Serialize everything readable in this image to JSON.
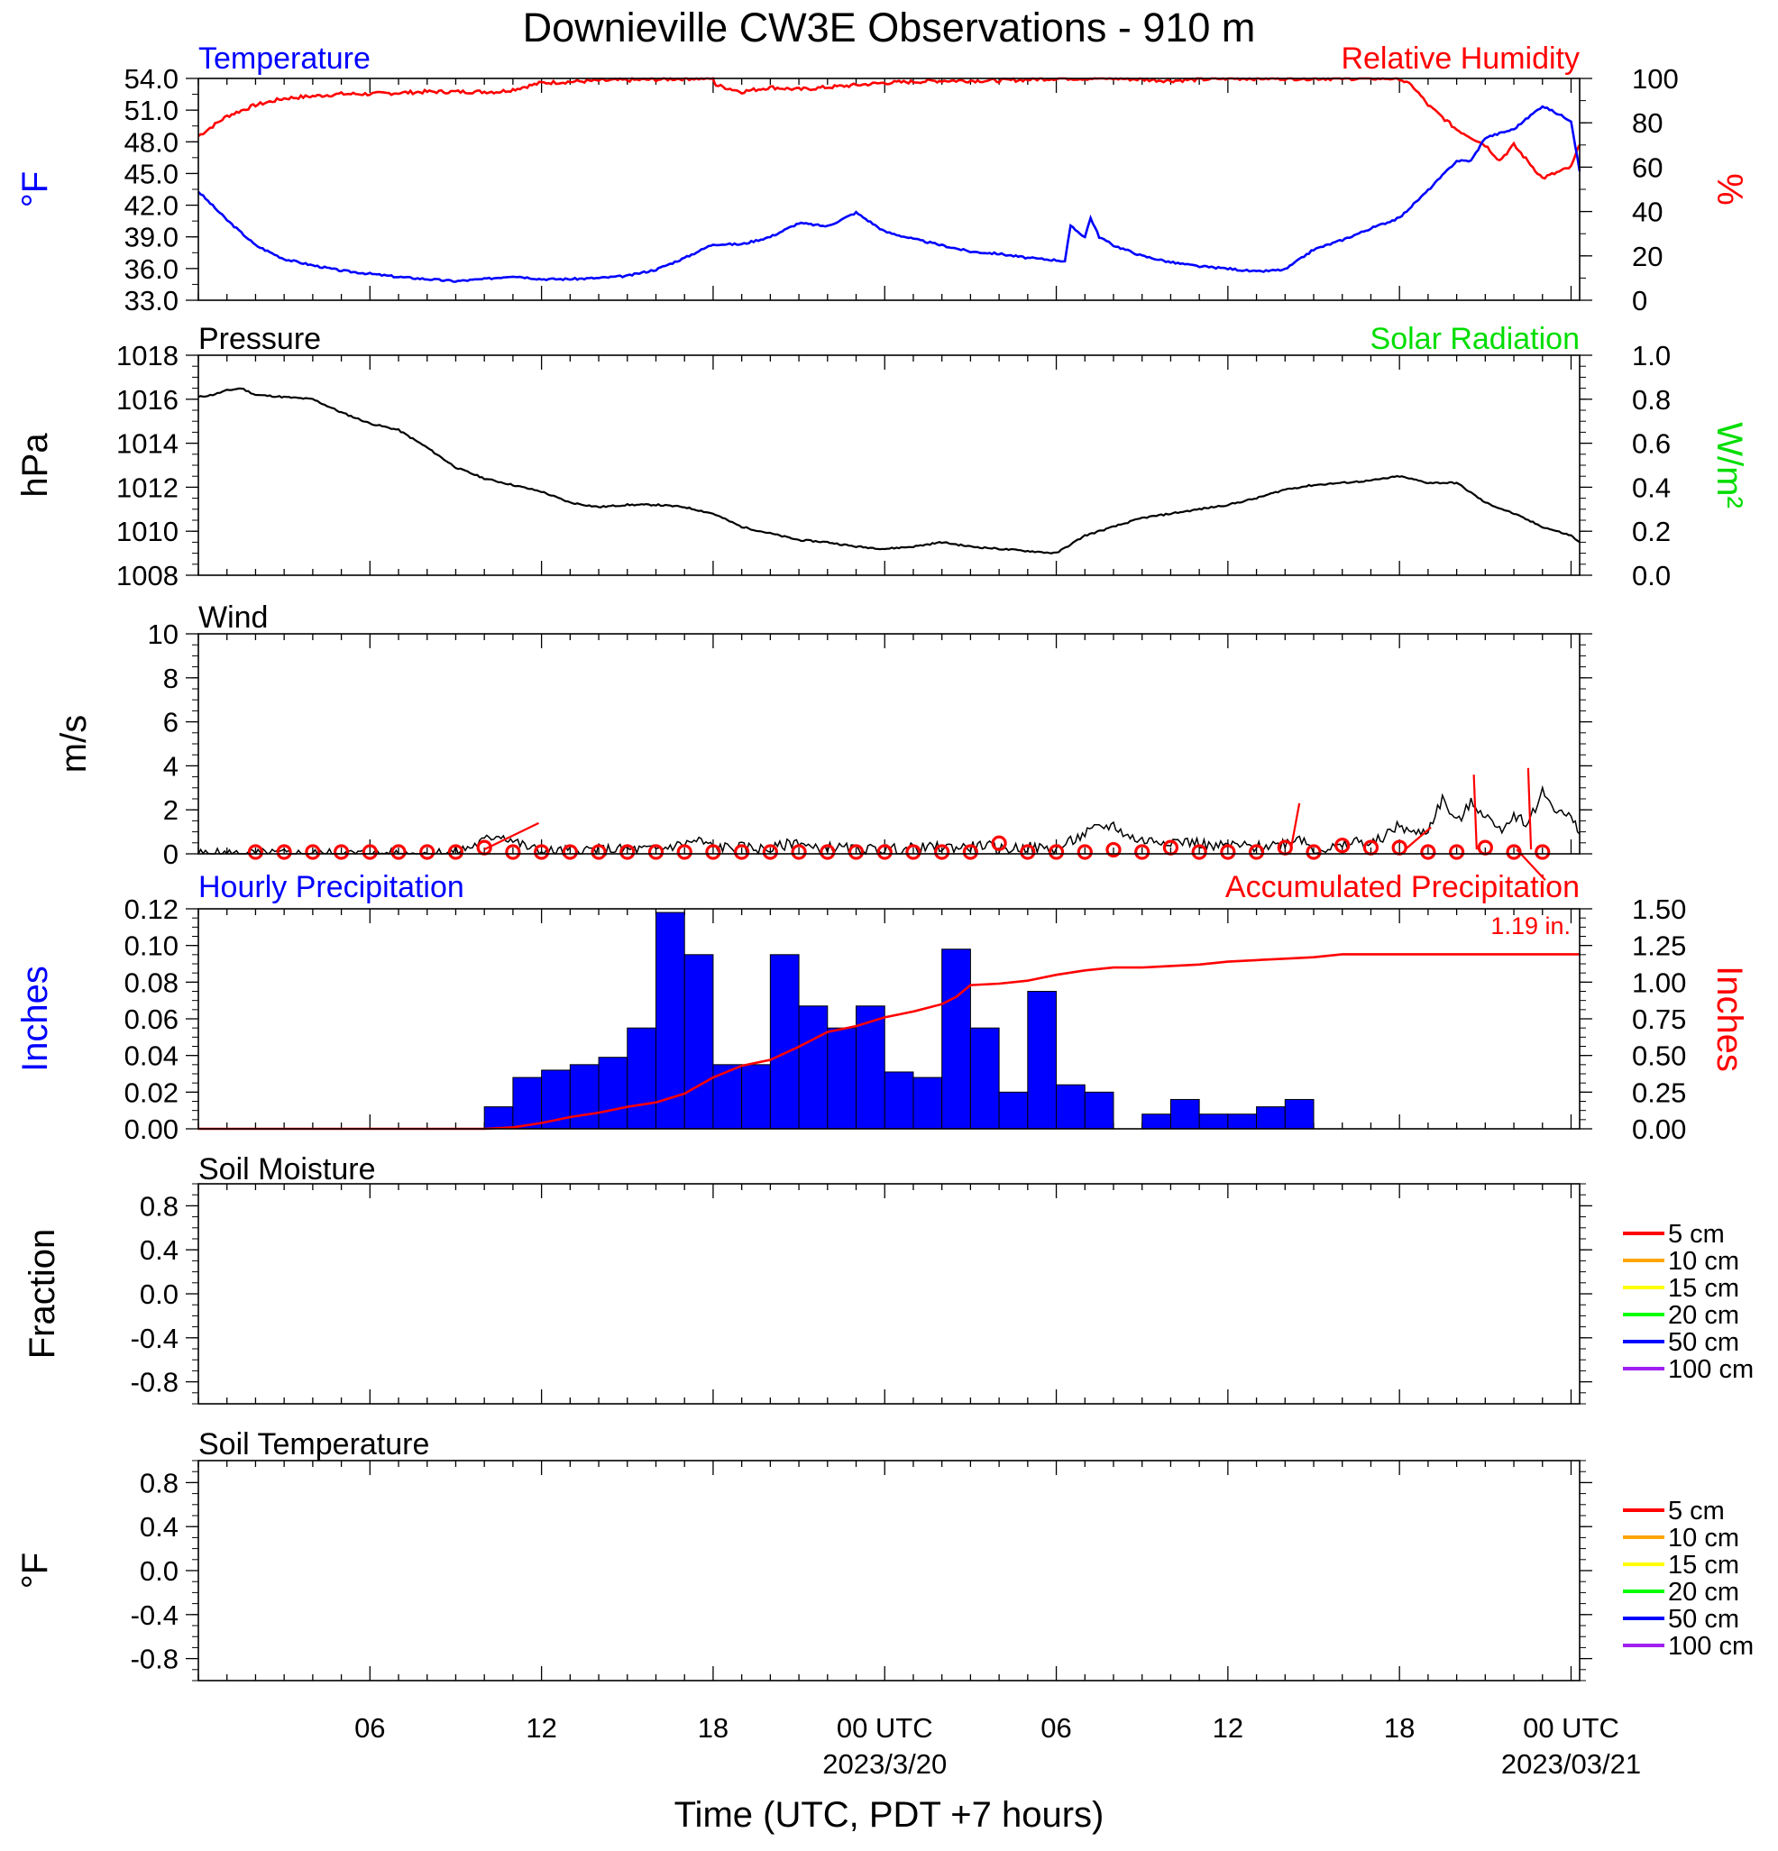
{
  "title": "Downieville CW3E Observations - 910 m",
  "x_axis": {
    "label": "Time (UTC, PDT +7 hours)",
    "ticks": [
      {
        "hour": 6,
        "label": "06"
      },
      {
        "hour": 12,
        "label": "12"
      },
      {
        "hour": 18,
        "label": "18"
      },
      {
        "hour": 24,
        "label": "00 UTC",
        "sub": "2023/3/20"
      },
      {
        "hour": 30,
        "label": "06"
      },
      {
        "hour": 36,
        "label": "12"
      },
      {
        "hour": 42,
        "label": "18"
      },
      {
        "hour": 48,
        "label": "00 UTC",
        "sub": "2023/03/21"
      }
    ]
  },
  "colors": {
    "temperature": "#0000ff",
    "humidity": "#ff0000",
    "pressure": "#000000",
    "solar": "#00dd00",
    "wind": "#000000",
    "wind_marker": "#ff0000",
    "precip_bar": "#0000ff",
    "accum": "#ff0000"
  },
  "panels": {
    "temp_rh": {
      "left_title": "Temperature",
      "right_title": "Relative Humidity",
      "left_unit": "°F",
      "right_unit": "%",
      "left_ticks": [
        "54.0",
        "51.0",
        "48.0",
        "45.0",
        "42.0",
        "39.0",
        "36.0",
        "33.0"
      ],
      "right_ticks": [
        "100",
        "80",
        "60",
        "40",
        "20",
        "0"
      ]
    },
    "pressure": {
      "left_title": "Pressure",
      "right_title": "Solar Radiation",
      "left_unit": "hPa",
      "right_unit": "W/m²",
      "left_ticks": [
        "1018",
        "1016",
        "1014",
        "1012",
        "1010",
        "1008"
      ],
      "right_ticks": [
        "1.0",
        "0.8",
        "0.6",
        "0.4",
        "0.2",
        "0.0"
      ]
    },
    "wind": {
      "left_title": "Wind",
      "left_unit": "m/s",
      "left_ticks": [
        "10",
        "8",
        "6",
        "4",
        "2",
        "0"
      ]
    },
    "precip": {
      "left_title": "Hourly Precipitation",
      "right_title": "Accumulated Precipitation",
      "left_unit": "Inches",
      "right_unit": "Inches",
      "total_label": "1.19 in.",
      "left_ticks": [
        "0.12",
        "0.10",
        "0.08",
        "0.06",
        "0.04",
        "0.02",
        "0.00"
      ],
      "right_ticks": [
        "1.50",
        "1.25",
        "1.00",
        "0.75",
        "0.50",
        "0.25",
        "0.00"
      ]
    },
    "soil_moisture": {
      "left_title": "Soil Moisture",
      "left_unit": "Fraction",
      "left_ticks": [
        "0.8",
        "0.4",
        "0.0",
        "-0.4",
        "-0.8"
      ]
    },
    "soil_temp": {
      "left_title": "Soil Temperature",
      "left_unit": "°F",
      "left_ticks": [
        "0.8",
        "0.4",
        "0.0",
        "-0.4",
        "-0.8"
      ]
    }
  },
  "legend": [
    {
      "label": "5 cm",
      "color": "#ff0000"
    },
    {
      "label": "10 cm",
      "color": "#ffa500"
    },
    {
      "label": "15 cm",
      "color": "#ffff00"
    },
    {
      "label": "20 cm",
      "color": "#00ff00"
    },
    {
      "label": "50 cm",
      "color": "#0000ff"
    },
    {
      "label": "100 cm",
      "color": "#a020f0"
    }
  ],
  "chart_data": [
    {
      "type": "line",
      "title": "Temperature / Relative Humidity",
      "x_unit": "hours since 2023-03-19 00 UTC",
      "ylim": [
        33,
        54
      ],
      "y2lim": [
        0,
        100
      ],
      "series": [
        {
          "name": "Temperature",
          "axis": "left",
          "unit": "°F",
          "x": [
            0,
            1,
            2,
            3,
            4,
            5,
            6,
            7,
            8,
            9,
            10,
            11,
            12,
            13,
            14,
            15,
            16,
            17,
            18,
            19,
            20,
            21,
            22,
            23,
            24,
            25,
            26,
            27,
            28,
            29,
            30,
            30.3,
            30.5,
            31,
            31.2,
            31.5,
            32,
            33,
            34,
            35,
            36,
            37,
            38,
            39,
            40,
            41,
            42,
            43,
            44,
            44.5,
            45,
            46,
            47,
            48,
            48.3
          ],
          "y": [
            43.3,
            40.6,
            38.2,
            36.9,
            36.3,
            35.8,
            35.5,
            35.2,
            35.0,
            34.8,
            35.0,
            35.3,
            35.0,
            35.0,
            35.1,
            35.3,
            35.9,
            37.0,
            38.3,
            38.3,
            39.0,
            40.3,
            40.0,
            41.3,
            39.5,
            38.8,
            38.2,
            37.6,
            37.4,
            37.0,
            36.8,
            36.7,
            40.0,
            39.0,
            40.8,
            39.0,
            38.2,
            37.2,
            36.6,
            36.2,
            36.0,
            35.7,
            35.9,
            37.8,
            38.7,
            39.8,
            40.8,
            43.4,
            46.2,
            46.2,
            48.4,
            49.2,
            51.4,
            50.0,
            45.2
          ]
        },
        {
          "name": "Relative Humidity",
          "axis": "right",
          "unit": "%",
          "x": [
            0,
            1,
            2,
            3,
            4,
            5,
            6,
            8,
            10,
            10.5,
            11,
            12,
            14,
            16,
            17,
            18,
            18.1,
            19,
            20,
            21,
            22,
            24,
            26,
            28,
            30,
            32,
            34,
            36,
            38,
            40,
            42,
            42.5,
            43,
            44,
            45,
            45.5,
            46,
            47,
            48,
            48.3
          ],
          "y": [
            74,
            83,
            88,
            91,
            92,
            93,
            93,
            94,
            94,
            94,
            95,
            98,
            99,
            99.5,
            100,
            100,
            97,
            94,
            96,
            95,
            96,
            98,
            99,
            99,
            100,
            100,
            99,
            100,
            100,
            100,
            100,
            96,
            88,
            77,
            70,
            63,
            70,
            55,
            60,
            70
          ]
        }
      ]
    },
    {
      "type": "line",
      "title": "Pressure / Solar Radiation",
      "x_unit": "hours since 2023-03-19 00 UTC",
      "ylim": [
        1008,
        1018
      ],
      "y2lim": [
        0,
        1
      ],
      "series": [
        {
          "name": "Pressure",
          "axis": "left",
          "unit": "hPa",
          "x": [
            0,
            0.5,
            1,
            1.5,
            2,
            3,
            4,
            5,
            6,
            7,
            8,
            9,
            10,
            11,
            12,
            13,
            14,
            15,
            16,
            17,
            18,
            19,
            20,
            21,
            22,
            23,
            24,
            25,
            26,
            27,
            28,
            29,
            30,
            31,
            32,
            33,
            34,
            35,
            36,
            37,
            38,
            39,
            40,
            41,
            42,
            43,
            44,
            45,
            46,
            47,
            48,
            48.3
          ],
          "y": [
            1016.1,
            1016.2,
            1016.4,
            1016.5,
            1016.2,
            1016.1,
            1016.0,
            1015.4,
            1014.9,
            1014.6,
            1013.8,
            1012.9,
            1012.4,
            1012.1,
            1011.8,
            1011.3,
            1011.1,
            1011.2,
            1011.2,
            1011.1,
            1010.8,
            1010.2,
            1009.9,
            1009.6,
            1009.5,
            1009.3,
            1009.2,
            1009.3,
            1009.5,
            1009.3,
            1009.2,
            1009.1,
            1009.0,
            1009.8,
            1010.2,
            1010.6,
            1010.8,
            1011.0,
            1011.2,
            1011.5,
            1011.9,
            1012.1,
            1012.2,
            1012.3,
            1012.5,
            1012.2,
            1012.2,
            1011.3,
            1010.8,
            1010.2,
            1009.8,
            1009.5
          ]
        }
      ]
    },
    {
      "type": "line",
      "title": "Wind",
      "x_unit": "hours since 2023-03-19 00 UTC",
      "ylim": [
        0,
        10
      ],
      "series": [
        {
          "name": "Wind speed",
          "unit": "m/s",
          "x": [
            0,
            4,
            8,
            9,
            9.5,
            10,
            10.5,
            11,
            11.5,
            12,
            14,
            16,
            17.5,
            18,
            19,
            20,
            21,
            21.5,
            22,
            23,
            24,
            26,
            27,
            27.5,
            28,
            29,
            30,
            31,
            31.5,
            32,
            32.5,
            33,
            34,
            35,
            35.5,
            36,
            37,
            38,
            38.5,
            39,
            40,
            40.5,
            41,
            42,
            42.5,
            43,
            43.5,
            44,
            44.5,
            45,
            45.5,
            46,
            46.5,
            47,
            47.5,
            48,
            48.3
          ],
          "y": [
            0,
            0,
            0,
            0.1,
            0.3,
            0.6,
            0.9,
            0.6,
            0.3,
            0.1,
            0.2,
            0.2,
            0.6,
            0.3,
            0.3,
            0.2,
            0.6,
            0.2,
            0.3,
            0.2,
            0.2,
            0.3,
            0.3,
            0.4,
            0.2,
            0.3,
            0.2,
            0.9,
            1.2,
            1.3,
            0.8,
            0.6,
            0.6,
            0.5,
            0.3,
            0.4,
            0.3,
            0.5,
            0.8,
            0.2,
            0.3,
            0.6,
            0.4,
            1.3,
            0.9,
            1.1,
            2.5,
            1.4,
            2.3,
            1.8,
            1.0,
            1.8,
            1.4,
            2.8,
            2.0,
            1.6,
            0.9
          ]
        },
        {
          "name": "Hourly wind circles",
          "unit": "m/s",
          "x": [
            2,
            3,
            4,
            5,
            6,
            7,
            8,
            9,
            10,
            11,
            12,
            13,
            14,
            15,
            16,
            17,
            18,
            19,
            20,
            21,
            22,
            23,
            24,
            25,
            26,
            27,
            28,
            29,
            30,
            31,
            32,
            33,
            34,
            35,
            36,
            37,
            38,
            39,
            40,
            41,
            42,
            43,
            44,
            45,
            46,
            47
          ],
          "y": [
            0,
            0,
            0,
            0,
            0,
            0,
            0,
            0,
            0.2,
            0,
            0,
            0,
            0,
            0,
            0,
            0,
            0,
            0,
            0,
            0,
            0,
            0,
            0,
            0,
            0,
            0,
            0.4,
            0,
            0,
            0,
            0.1,
            0,
            0.2,
            0,
            0,
            0,
            0.2,
            0,
            0.3,
            0.2,
            0.2,
            0,
            0,
            0.2,
            0,
            0
          ]
        }
      ]
    },
    {
      "type": "bar",
      "title": "Hourly Precipitation",
      "x_unit": "hours since 2023-03-19 00 UTC",
      "ylim": [
        0,
        0.12
      ],
      "y2lim": [
        0,
        1.5
      ],
      "series": [
        {
          "name": "Hourly Precipitation",
          "unit": "in",
          "x": [
            10,
            11,
            12,
            13,
            14,
            15,
            16,
            17,
            18,
            19,
            20,
            21,
            22,
            23,
            24,
            25,
            26,
            27,
            28,
            29,
            30,
            31,
            32,
            33,
            34,
            35,
            36,
            37,
            38,
            39,
            40,
            41,
            42,
            43,
            44,
            45,
            46,
            47
          ],
          "y": [
            0.012,
            0.028,
            0.032,
            0.035,
            0.039,
            0.055,
            0.118,
            0.095,
            0.035,
            0.035,
            0.095,
            0.067,
            0.055,
            0.067,
            0.031,
            0.028,
            0.098,
            0.055,
            0.02,
            0.075,
            0.024,
            0.02,
            0,
            0.008,
            0.016,
            0.008,
            0.008,
            0.012,
            0.016,
            0,
            0,
            0,
            0,
            0,
            0,
            0,
            0,
            0
          ]
        },
        {
          "name": "Accumulated Precipitation",
          "axis": "right",
          "unit": "in",
          "x": [
            0,
            10,
            11,
            12,
            13,
            14,
            15,
            16,
            17,
            18,
            19,
            20,
            21,
            22,
            23,
            24,
            25,
            26,
            26.5,
            27,
            28,
            29,
            30,
            31,
            32,
            33,
            34,
            35,
            36,
            37,
            38,
            39,
            40,
            44,
            48.3
          ],
          "y": [
            0,
            0,
            0.01,
            0.04,
            0.08,
            0.11,
            0.15,
            0.18,
            0.24,
            0.35,
            0.43,
            0.47,
            0.56,
            0.66,
            0.7,
            0.76,
            0.8,
            0.85,
            0.9,
            0.98,
            0.99,
            1.01,
            1.05,
            1.08,
            1.1,
            1.1,
            1.11,
            1.12,
            1.14,
            1.15,
            1.16,
            1.17,
            1.19,
            1.19,
            1.19
          ]
        }
      ]
    },
    {
      "type": "line",
      "title": "Soil Moisture",
      "ylim": [
        -1,
        1
      ],
      "series": []
    },
    {
      "type": "line",
      "title": "Soil Temperature",
      "ylim": [
        -1,
        1
      ],
      "series": []
    }
  ]
}
